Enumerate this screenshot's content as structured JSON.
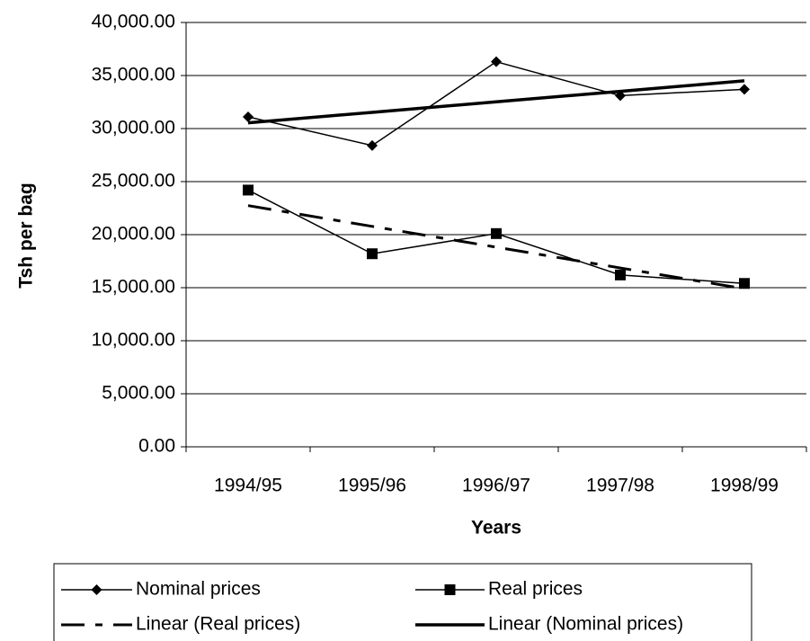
{
  "chart_data": {
    "type": "line",
    "x_label": "Years",
    "y_label": "Tsh per bag",
    "categories": [
      "1994/95",
      "1995/96",
      "1996/97",
      "1997/98",
      "1998/99"
    ],
    "series": [
      {
        "name": "Nominal prices",
        "color": "#000000",
        "marker": "diamond",
        "line_style": "solid",
        "line_width": 1.5,
        "values": [
          31100,
          28400,
          36300,
          33100,
          33700
        ]
      },
      {
        "name": "Real prices",
        "color": "#000000",
        "marker": "square",
        "line_style": "solid",
        "line_width": 1.5,
        "values": [
          24200,
          18200,
          20100,
          16200,
          15400
        ]
      },
      {
        "name": "Linear (Real prices)",
        "color": "#000000",
        "marker": "none",
        "line_style": "dashdot",
        "line_width": 3,
        "values": [
          22740,
          20780,
          18820,
          16860,
          14900
        ]
      },
      {
        "name": "Linear (Nominal prices)",
        "color": "#000000",
        "marker": "none",
        "line_style": "solid",
        "line_width": 3.5,
        "values": [
          30540,
          31530,
          32520,
          33510,
          34500
        ]
      }
    ],
    "ylim": [
      0,
      40000
    ],
    "yticks": [
      {
        "value": 0,
        "label": "0.00"
      },
      {
        "value": 5000,
        "label": "5,000.00"
      },
      {
        "value": 10000,
        "label": "10,000.00"
      },
      {
        "value": 15000,
        "label": "15,000.00"
      },
      {
        "value": 20000,
        "label": "20,000.00"
      },
      {
        "value": 25000,
        "label": "25,000.00"
      },
      {
        "value": 30000,
        "label": "30,000.00"
      },
      {
        "value": 35000,
        "label": "35,000.00"
      },
      {
        "value": 40000,
        "label": "40,000.00"
      }
    ],
    "grid": true,
    "legend": "bottom"
  }
}
